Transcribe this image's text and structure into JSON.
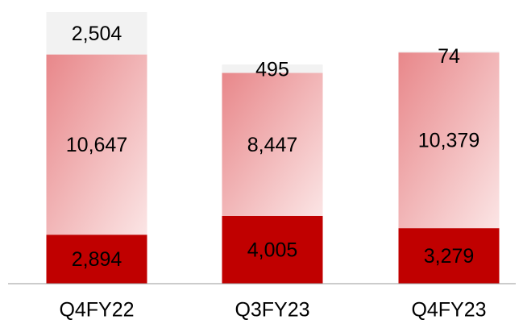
{
  "chart_data": {
    "type": "stacked_bar",
    "categories": [
      "Q4FY22",
      "Q3FY23",
      "Q4FY23"
    ],
    "series": [
      {
        "color": "#c00000",
        "values": [
          2894,
          4005,
          3279
        ],
        "value_labels": [
          "2,894",
          "4,005",
          "3,279"
        ]
      },
      {
        "color": "#e8878a",
        "values": [
          10647,
          8447,
          10379
        ],
        "value_labels": [
          "10,647",
          "8,447",
          "10,379"
        ]
      },
      {
        "color": "#f2f2f2",
        "values": [
          2504,
          495,
          74
        ],
        "value_labels": [
          "2,504",
          "495",
          "74"
        ]
      }
    ]
  }
}
